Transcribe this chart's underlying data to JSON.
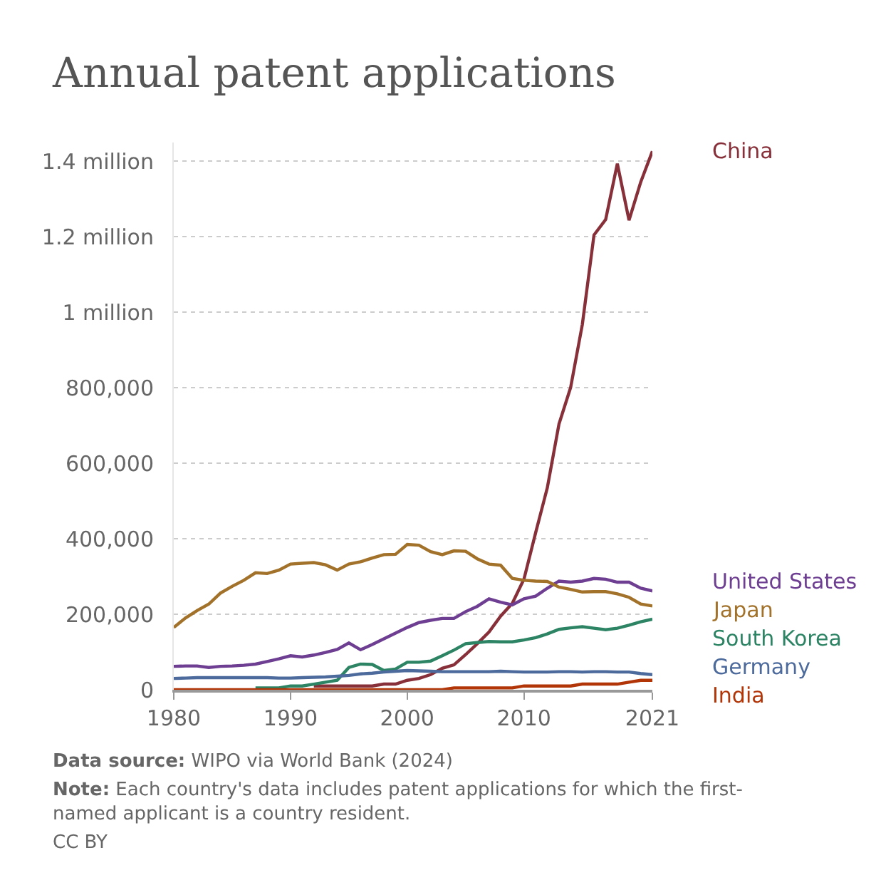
{
  "chart_data": {
    "type": "line",
    "title": "Annual patent applications",
    "x": [
      1980,
      1981,
      1982,
      1983,
      1984,
      1985,
      1986,
      1987,
      1988,
      1989,
      1990,
      1991,
      1992,
      1993,
      1994,
      1995,
      1996,
      1997,
      1998,
      1999,
      2000,
      2001,
      2002,
      2003,
      2004,
      2005,
      2006,
      2007,
      2008,
      2009,
      2010,
      2011,
      2012,
      2013,
      2014,
      2015,
      2016,
      2017,
      2018,
      2019,
      2020,
      2021
    ],
    "series": [
      {
        "name": "China",
        "color": "#883039",
        "values": [
          null,
          null,
          null,
          null,
          null,
          null,
          null,
          null,
          null,
          null,
          null,
          null,
          10000,
          10000,
          10000,
          10000,
          10000,
          10000,
          15000,
          15000,
          25000,
          30000,
          40000,
          57000,
          66000,
          93000,
          122000,
          153000,
          195000,
          229000,
          293000,
          416000,
          535000,
          704000,
          801000,
          968000,
          1205000,
          1246000,
          1394000,
          1244000,
          1345000,
          1427000
        ]
      },
      {
        "name": "United States",
        "color": "#6d3e91",
        "values": [
          62000,
          63000,
          63000,
          59000,
          62000,
          63000,
          65000,
          68000,
          75000,
          82000,
          90000,
          87000,
          92000,
          99000,
          107000,
          124000,
          106000,
          120000,
          135000,
          150000,
          165000,
          178000,
          184000,
          189000,
          189000,
          207000,
          221000,
          241000,
          232000,
          225000,
          241000,
          248000,
          269000,
          288000,
          285000,
          288000,
          295000,
          293000,
          285000,
          285000,
          269000,
          262000
        ]
      },
      {
        "name": "Japan",
        "color": "#a2722b",
        "values": [
          165000,
          190000,
          210000,
          227000,
          256000,
          274000,
          290000,
          310000,
          308000,
          317000,
          333000,
          335000,
          337000,
          331000,
          317000,
          333000,
          339000,
          349000,
          358000,
          359000,
          385000,
          383000,
          366000,
          358000,
          368000,
          367000,
          347000,
          333000,
          330000,
          295000,
          290000,
          288000,
          287000,
          272000,
          266000,
          259000,
          260000,
          260000,
          254000,
          245000,
          227000,
          222000
        ]
      },
      {
        "name": "South Korea",
        "color": "#2c8465",
        "values": [
          null,
          null,
          null,
          null,
          null,
          null,
          null,
          5000,
          5000,
          5000,
          10000,
          10000,
          15000,
          20000,
          25000,
          59000,
          68000,
          67000,
          51000,
          55000,
          73000,
          73000,
          76000,
          90000,
          105000,
          122000,
          125000,
          128000,
          127000,
          127000,
          132000,
          138000,
          148000,
          160000,
          164000,
          167000,
          163000,
          159000,
          163000,
          171000,
          180000,
          187000
        ]
      },
      {
        "name": "Germany",
        "color": "#4c6a9c",
        "values": [
          30000,
          31000,
          32000,
          32000,
          32000,
          32000,
          32000,
          32000,
          32000,
          31000,
          31000,
          32000,
          33000,
          34000,
          36000,
          38000,
          42000,
          44000,
          47000,
          49000,
          51000,
          50000,
          49000,
          48000,
          48000,
          48000,
          48000,
          48000,
          49000,
          48000,
          47000,
          47000,
          47000,
          48000,
          48000,
          47000,
          48000,
          48000,
          47000,
          47000,
          43000,
          40000
        ]
      },
      {
        "name": "India",
        "color": "#b13507",
        "values": [
          0,
          0,
          0,
          0,
          0,
          0,
          0,
          0,
          0,
          0,
          0,
          0,
          0,
          0,
          0,
          0,
          0,
          0,
          0,
          0,
          0,
          0,
          0,
          0,
          5000,
          5000,
          5000,
          5000,
          5000,
          5000,
          10000,
          10000,
          10000,
          10000,
          10000,
          15000,
          15000,
          15000,
          15000,
          20000,
          25000,
          25000
        ]
      }
    ],
    "xlim": [
      1980,
      2021
    ],
    "xticks": [
      1980,
      1990,
      2000,
      2010,
      2021
    ],
    "ylim": [
      0,
      1450000
    ],
    "yticks": [
      0,
      {
        "value": 200000,
        "label": "200,000"
      },
      {
        "value": 400000,
        "label": "400,000"
      },
      {
        "value": 600000,
        "label": "600,000"
      },
      {
        "value": 800000,
        "label": "800,000"
      },
      {
        "value": 1000000,
        "label": "1 million"
      },
      {
        "value": 1200000,
        "label": "1.2 million"
      },
      {
        "value": 1400000,
        "label": "1.4 million"
      }
    ],
    "grid": "y",
    "legend": false,
    "marker": "none",
    "line_style": "solid",
    "annotations": [
      "Data source: WIPO via World Bank (2024)",
      "Note: Each country's data includes patent applications for which the first-named applicant is a country resident.",
      "CC BY"
    ]
  }
}
